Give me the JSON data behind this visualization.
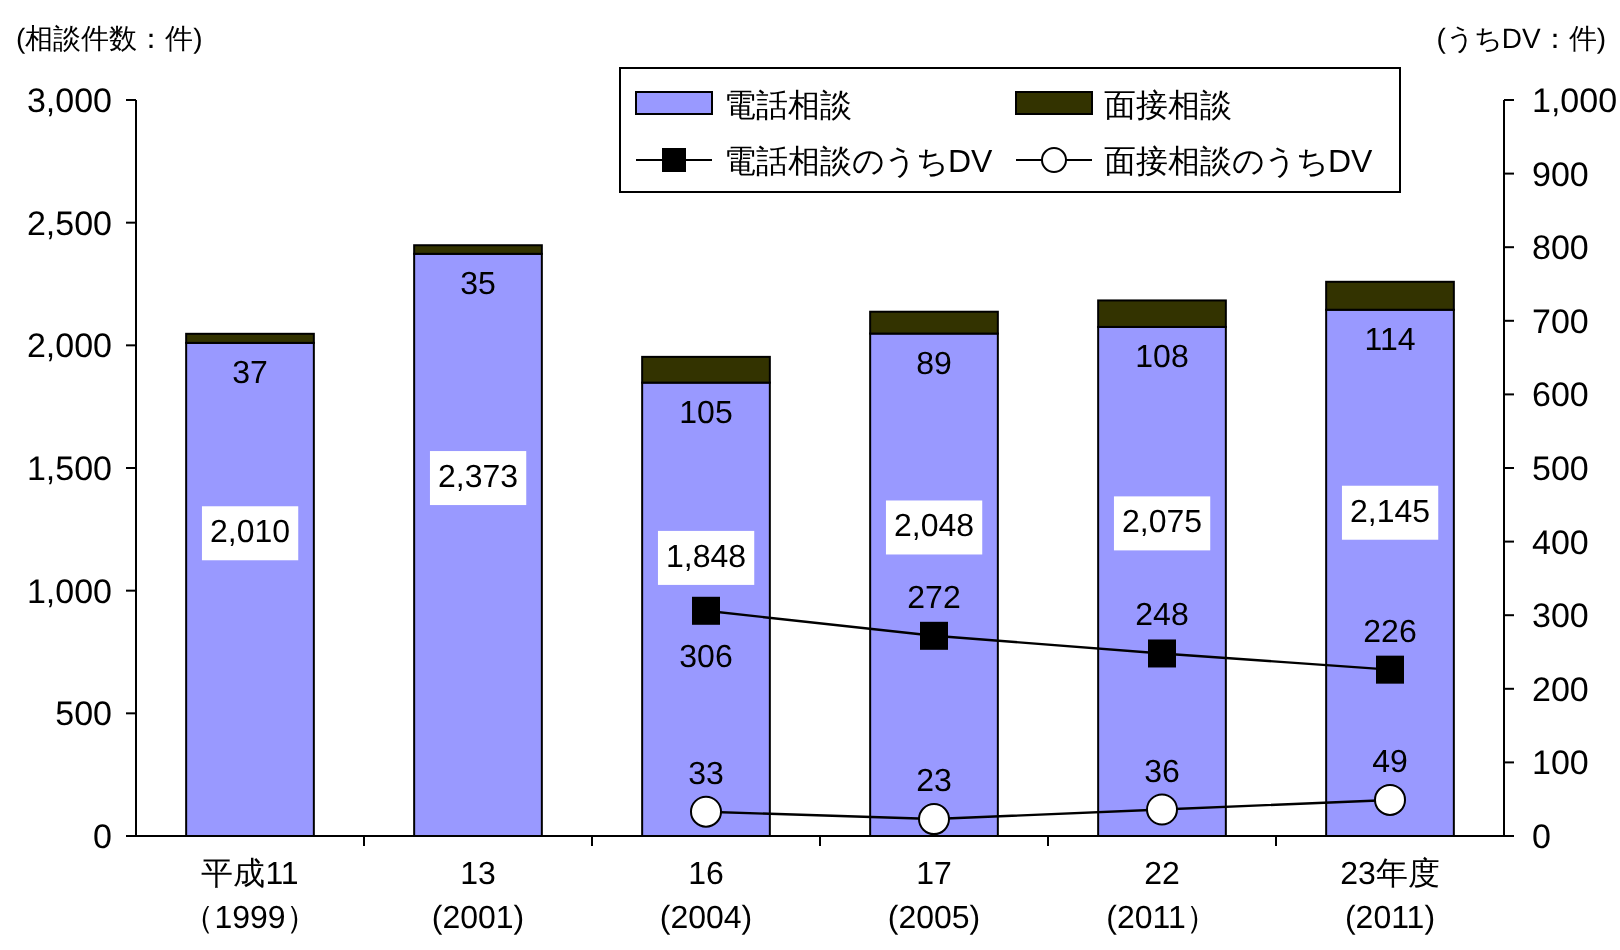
{
  "chart_data": {
    "type": "bar",
    "stacked": true,
    "ylabel": "(相談件数：件)",
    "y2label": "(うちDV：件)",
    "categories": [
      "平成11\n（1999）",
      "13\n(2001)",
      "16\n(2004)",
      "17\n(2005)",
      "22\n(2011）",
      "23年度\n(2011)"
    ],
    "series": [
      {
        "name": "電話相談",
        "color": "#9999ff",
        "values": [
          2010,
          2373,
          1848,
          2048,
          2075,
          2145
        ],
        "value_labels": [
          "2,010",
          "2,373",
          "1,848",
          "2,048",
          "2,075",
          "2,145"
        ]
      },
      {
        "name": "面接相談",
        "color": "#333300",
        "values": [
          37,
          35,
          105,
          89,
          108,
          114
        ],
        "value_labels": [
          "37",
          "35",
          "105",
          "89",
          "108",
          "114"
        ]
      },
      {
        "name": "電話相談のうちDV",
        "type": "line",
        "axis": "y2",
        "marker": "square",
        "color": "#000000",
        "values": [
          null,
          null,
          306,
          272,
          248,
          226
        ],
        "value_labels": [
          null,
          null,
          "306",
          "272",
          "248",
          "226"
        ]
      },
      {
        "name": "面接相談のうちDV",
        "type": "line",
        "axis": "y2",
        "marker": "circle",
        "color": "#000000",
        "values": [
          null,
          null,
          33,
          23,
          36,
          49
        ],
        "value_labels": [
          null,
          null,
          "33",
          "23",
          "36",
          "49"
        ]
      }
    ],
    "ylim": [
      0,
      3000
    ],
    "yticks": [
      0,
      500,
      {
        "value": 1000,
        "label": "1,000"
      },
      {
        "value": 1500,
        "label": "1,500"
      },
      {
        "value": 2000,
        "label": "2,000"
      },
      {
        "value": 2500,
        "label": "2,500"
      },
      {
        "value": 3000,
        "label": "3,000"
      }
    ],
    "y2lim": [
      0,
      1000
    ],
    "y2ticks": [
      0,
      100,
      200,
      300,
      400,
      500,
      600,
      700,
      800,
      900,
      {
        "value": 1000,
        "label": "1,000"
      }
    ],
    "legend": "top",
    "grid": false
  }
}
